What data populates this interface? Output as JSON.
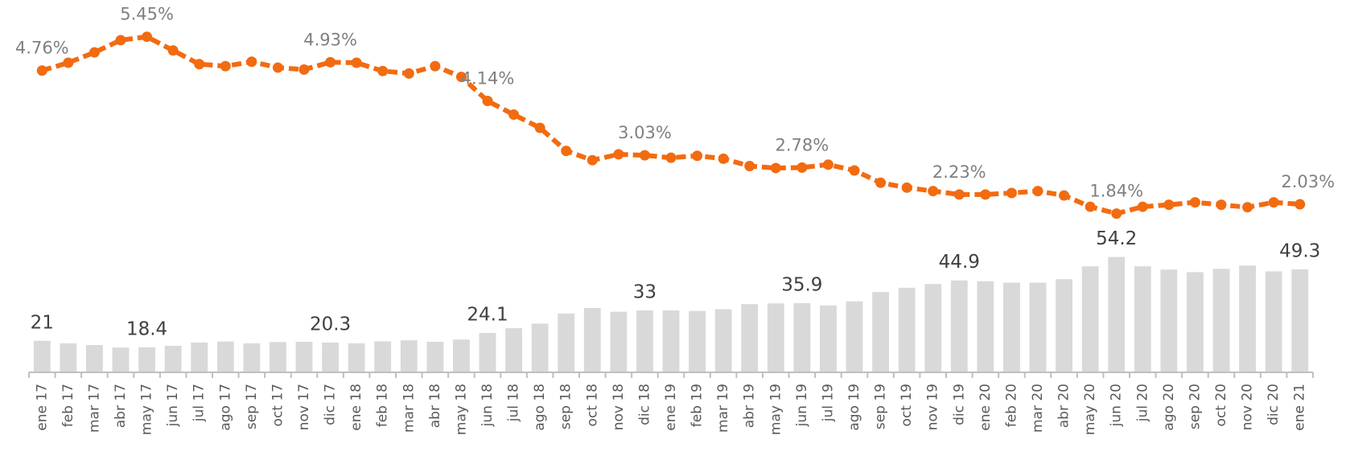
{
  "chart_data": {
    "type": "bar_line",
    "categories": [
      "ene 17",
      "feb 17",
      "mar 17",
      "abr 17",
      "may 17",
      "jun 17",
      "jul 17",
      "ago 17",
      "sep 17",
      "oct 17",
      "nov 17",
      "dic 17",
      "ene 18",
      "feb 18",
      "mar 18",
      "abr 18",
      "may 18",
      "jun 18",
      "jul 18",
      "ago 18",
      "sep 18",
      "oct 18",
      "nov 18",
      "dic 18",
      "ene 19",
      "feb 19",
      "mar 19",
      "abr 19",
      "may 19",
      "jun 19",
      "jul 19",
      "ago 19",
      "sep 19",
      "oct 19",
      "nov 19",
      "dic 19",
      "ene 20",
      "feb 20",
      "mar 20",
      "abr 20",
      "may 20",
      "jun 20",
      "jul 20",
      "ago 20",
      "sep 20",
      "oct 20",
      "nov 20",
      "dic 20",
      "ene 21"
    ],
    "series": [
      {
        "type": "bar",
        "color": "#d9d9d9",
        "values": [
          21,
          20.0,
          19.3,
          18.3,
          18.4,
          19.0,
          20.3,
          20.7,
          20.0,
          20.5,
          20.6,
          20.3,
          20.0,
          20.8,
          21.2,
          20.6,
          21.5,
          24.1,
          26.0,
          27.8,
          31.8,
          34.0,
          32.5,
          33,
          33.0,
          32.8,
          33.5,
          35.5,
          35.8,
          35.9,
          35.0,
          36.6,
          40.3,
          42.0,
          43.5,
          44.9,
          44.6,
          44.0,
          44.0,
          45.4,
          50.5,
          54.2,
          50.5,
          49.2,
          48.2,
          49.5,
          50.8,
          48.5,
          49.3
        ],
        "value_labels": [
          "21",
          null,
          null,
          null,
          "18.4",
          null,
          null,
          null,
          null,
          null,
          null,
          "20.3",
          null,
          null,
          null,
          null,
          null,
          "24.1",
          null,
          null,
          null,
          null,
          null,
          "33",
          null,
          null,
          null,
          null,
          null,
          "35.9",
          null,
          null,
          null,
          null,
          null,
          "44.9",
          null,
          null,
          null,
          null,
          null,
          "54.2",
          null,
          null,
          null,
          null,
          null,
          null,
          "49.3"
        ]
      },
      {
        "type": "line",
        "axis": "y2",
        "color": "#f26b10",
        "values": [
          4.76,
          4.92,
          5.13,
          5.38,
          5.45,
          5.17,
          4.89,
          4.85,
          4.94,
          4.82,
          4.78,
          4.93,
          4.92,
          4.75,
          4.7,
          4.85,
          4.63,
          4.14,
          3.86,
          3.59,
          3.12,
          2.93,
          3.05,
          3.03,
          2.98,
          3.02,
          2.96,
          2.81,
          2.77,
          2.78,
          2.84,
          2.72,
          2.47,
          2.37,
          2.3,
          2.23,
          2.23,
          2.26,
          2.3,
          2.21,
          1.98,
          1.84,
          1.98,
          2.02,
          2.07,
          2.02,
          1.97,
          2.07,
          2.03
        ],
        "value_labels": [
          "4.76%",
          null,
          null,
          null,
          "5.45%",
          null,
          null,
          null,
          null,
          null,
          null,
          "4.93%",
          null,
          null,
          null,
          null,
          null,
          "4.14%",
          null,
          null,
          null,
          null,
          null,
          "3.03%",
          null,
          null,
          null,
          null,
          null,
          "2.78%",
          null,
          null,
          null,
          null,
          null,
          "2.23%",
          null,
          null,
          null,
          null,
          null,
          "1.84%",
          null,
          null,
          null,
          null,
          null,
          null,
          "2.03%"
        ]
      }
    ],
    "ylim": [
      8.5,
      156
    ],
    "y2lim": [
      -1.4,
      6.2
    ]
  }
}
